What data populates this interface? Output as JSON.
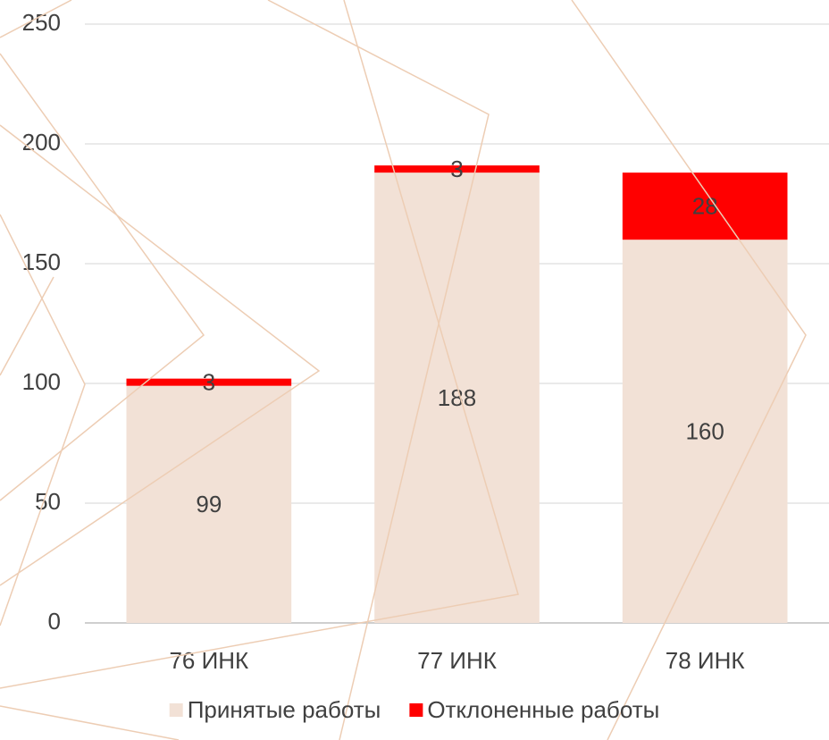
{
  "chart_data": {
    "type": "stacked_bar",
    "categories": [
      "76 ИНК",
      "77 ИНК",
      "78 ИНК"
    ],
    "series": [
      {
        "name": "Принятые работы",
        "color": "#f2e1d6",
        "values": [
          99,
          188,
          160
        ]
      },
      {
        "name": "Отклоненные работы",
        "color": "#ff0000",
        "values": [
          3,
          3,
          28
        ]
      }
    ],
    "ylim": [
      0,
      250
    ],
    "yticks": [
      0,
      50,
      100,
      150,
      200,
      250
    ],
    "grid": true,
    "legend": "bottom"
  }
}
